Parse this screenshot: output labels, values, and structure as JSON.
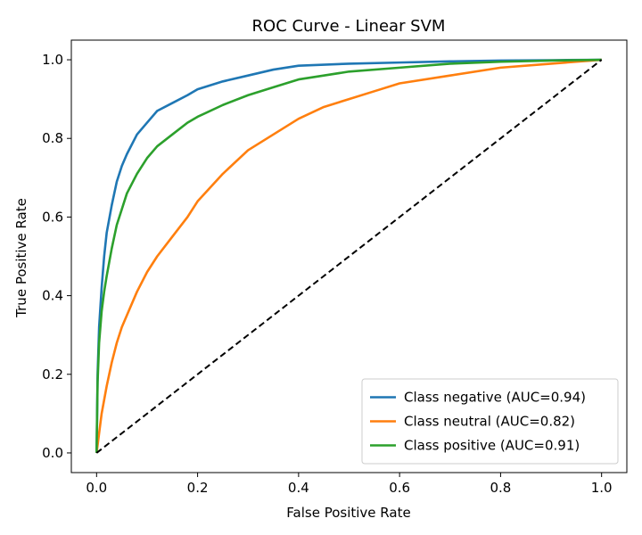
{
  "chart_data": {
    "type": "line",
    "title": "ROC Curve - Linear SVM",
    "xlabel": "False Positive Rate",
    "ylabel": "True Positive Rate",
    "xlim": [
      -0.05,
      1.05
    ],
    "ylim": [
      -0.05,
      1.05
    ],
    "xticks": [
      0.0,
      0.2,
      0.4,
      0.6,
      0.8,
      1.0
    ],
    "yticks": [
      0.0,
      0.2,
      0.4,
      0.6,
      0.8,
      1.0
    ],
    "xtick_labels": [
      "0.0",
      "0.2",
      "0.4",
      "0.6",
      "0.8",
      "1.0"
    ],
    "ytick_labels": [
      "0.0",
      "0.2",
      "0.4",
      "0.6",
      "0.8",
      "1.0"
    ],
    "grid": false,
    "legend_position": "lower-right",
    "series": [
      {
        "name": "Class negative (AUC=0.94)",
        "color": "#1f77b4",
        "x": [
          0,
          0.002,
          0.005,
          0.01,
          0.015,
          0.02,
          0.03,
          0.04,
          0.05,
          0.06,
          0.08,
          0.1,
          0.12,
          0.15,
          0.18,
          0.2,
          0.25,
          0.3,
          0.35,
          0.4,
          0.5,
          0.6,
          0.7,
          0.8,
          0.9,
          1.0
        ],
        "y": [
          0,
          0.2,
          0.32,
          0.42,
          0.5,
          0.56,
          0.63,
          0.69,
          0.73,
          0.76,
          0.81,
          0.84,
          0.87,
          0.89,
          0.91,
          0.925,
          0.945,
          0.96,
          0.975,
          0.985,
          0.99,
          0.993,
          0.996,
          0.998,
          0.999,
          1.0
        ]
      },
      {
        "name": "Class neutral (AUC=0.82)",
        "color": "#ff7f0e",
        "x": [
          0,
          0.005,
          0.01,
          0.02,
          0.03,
          0.04,
          0.05,
          0.06,
          0.08,
          0.1,
          0.12,
          0.15,
          0.18,
          0.2,
          0.25,
          0.3,
          0.35,
          0.4,
          0.45,
          0.5,
          0.55,
          0.6,
          0.7,
          0.8,
          0.9,
          0.95,
          1.0
        ],
        "y": [
          0,
          0.05,
          0.1,
          0.17,
          0.23,
          0.28,
          0.32,
          0.35,
          0.41,
          0.46,
          0.5,
          0.55,
          0.6,
          0.64,
          0.71,
          0.77,
          0.81,
          0.85,
          0.88,
          0.9,
          0.92,
          0.94,
          0.96,
          0.98,
          0.99,
          0.995,
          1.0
        ]
      },
      {
        "name": "Class positive (AUC=0.91)",
        "color": "#2ca02c",
        "x": [
          0,
          0.002,
          0.005,
          0.01,
          0.015,
          0.02,
          0.03,
          0.04,
          0.05,
          0.06,
          0.08,
          0.1,
          0.12,
          0.15,
          0.18,
          0.2,
          0.25,
          0.3,
          0.35,
          0.4,
          0.45,
          0.5,
          0.6,
          0.7,
          0.8,
          0.9,
          1.0
        ],
        "y": [
          0,
          0.18,
          0.28,
          0.36,
          0.41,
          0.45,
          0.52,
          0.58,
          0.62,
          0.66,
          0.71,
          0.75,
          0.78,
          0.81,
          0.84,
          0.855,
          0.885,
          0.91,
          0.93,
          0.95,
          0.96,
          0.97,
          0.98,
          0.99,
          0.995,
          0.998,
          1.0
        ]
      },
      {
        "name": "",
        "color": "#000000",
        "dashed": true,
        "x": [
          0,
          1
        ],
        "y": [
          0,
          1
        ]
      }
    ]
  }
}
